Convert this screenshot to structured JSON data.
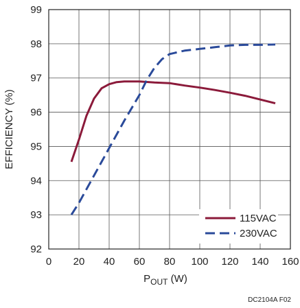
{
  "chart_data": {
    "type": "line",
    "xlabel_main": "P",
    "xlabel_sub": "OUT",
    "xlabel_unit": " (W)",
    "ylabel": "EFFICIENCY (%)",
    "xlim": [
      0,
      160
    ],
    "ylim": [
      92,
      99
    ],
    "xticks": [
      0,
      20,
      40,
      60,
      80,
      100,
      120,
      140,
      160
    ],
    "yticks": [
      92,
      93,
      94,
      95,
      96,
      97,
      98,
      99
    ],
    "grid": true,
    "legend_position": "bottom-right",
    "series": [
      {
        "name": "115VAC",
        "color": "#8b1a3a",
        "dash": "solid",
        "points": [
          [
            15,
            94.55
          ],
          [
            20,
            95.2
          ],
          [
            25,
            95.9
          ],
          [
            30,
            96.4
          ],
          [
            35,
            96.7
          ],
          [
            40,
            96.82
          ],
          [
            45,
            96.88
          ],
          [
            50,
            96.9
          ],
          [
            60,
            96.9
          ],
          [
            70,
            96.87
          ],
          [
            80,
            96.85
          ],
          [
            90,
            96.78
          ],
          [
            100,
            96.72
          ],
          [
            110,
            96.65
          ],
          [
            120,
            96.57
          ],
          [
            130,
            96.48
          ],
          [
            140,
            96.37
          ],
          [
            150,
            96.26
          ]
        ]
      },
      {
        "name": "230VAC",
        "color": "#2a4a9a",
        "dash": "dashed",
        "points": [
          [
            15,
            93.0
          ],
          [
            20,
            93.35
          ],
          [
            25,
            93.75
          ],
          [
            30,
            94.15
          ],
          [
            35,
            94.55
          ],
          [
            40,
            94.95
          ],
          [
            50,
            95.75
          ],
          [
            60,
            96.5
          ],
          [
            65,
            96.95
          ],
          [
            70,
            97.3
          ],
          [
            75,
            97.55
          ],
          [
            80,
            97.7
          ],
          [
            90,
            97.8
          ],
          [
            100,
            97.85
          ],
          [
            110,
            97.9
          ],
          [
            120,
            97.95
          ],
          [
            130,
            97.97
          ],
          [
            140,
            97.97
          ],
          [
            150,
            97.98
          ]
        ]
      }
    ],
    "figure_id": "DC2104A F02"
  }
}
